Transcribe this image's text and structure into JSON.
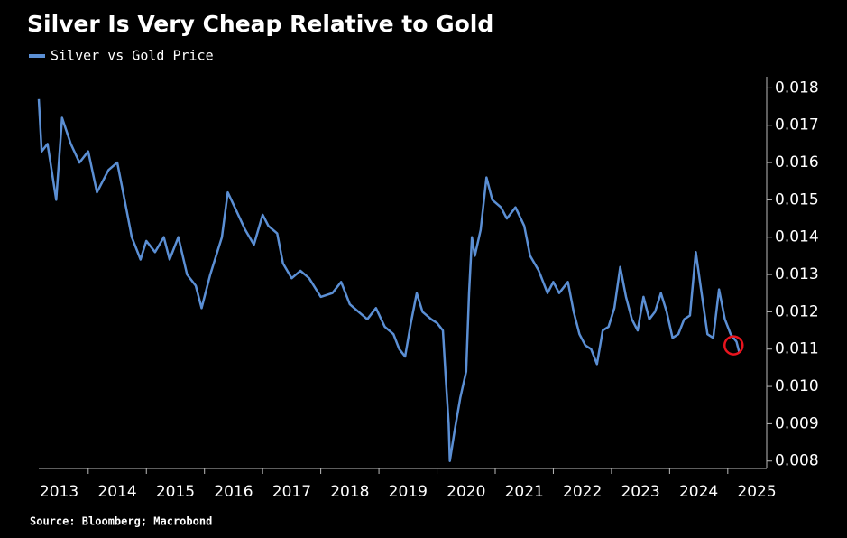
{
  "chart_data": {
    "type": "line",
    "title": "Silver Is Very Cheap Relative to Gold",
    "source": "Source: Bloomberg; Macrobond",
    "x": [
      2013.15,
      2013.2,
      2013.3,
      2013.45,
      2013.55,
      2013.7,
      2013.85,
      2014.0,
      2014.15,
      2014.35,
      2014.5,
      2014.6,
      2014.75,
      2014.9,
      2015.0,
      2015.15,
      2015.3,
      2015.4,
      2015.55,
      2015.7,
      2015.85,
      2015.95,
      2016.1,
      2016.3,
      2016.4,
      2016.55,
      2016.7,
      2016.85,
      2017.0,
      2017.1,
      2017.25,
      2017.35,
      2017.5,
      2017.65,
      2017.8,
      2018.0,
      2018.2,
      2018.35,
      2018.5,
      2018.65,
      2018.8,
      2018.95,
      2019.1,
      2019.25,
      2019.35,
      2019.45,
      2019.55,
      2019.65,
      2019.75,
      2019.9,
      2020.0,
      2020.1,
      2020.15,
      2020.2,
      2020.22,
      2020.3,
      2020.4,
      2020.5,
      2020.55,
      2020.6,
      2020.65,
      2020.75,
      2020.85,
      2020.95,
      2021.1,
      2021.2,
      2021.35,
      2021.5,
      2021.6,
      2021.75,
      2021.9,
      2022.0,
      2022.1,
      2022.25,
      2022.35,
      2022.45,
      2022.55,
      2022.65,
      2022.75,
      2022.85,
      2022.95,
      2023.05,
      2023.15,
      2023.25,
      2023.35,
      2023.45,
      2023.55,
      2023.65,
      2023.75,
      2023.85,
      2023.95,
      2024.05,
      2024.15,
      2024.25,
      2024.35,
      2024.45,
      2024.55,
      2024.65,
      2024.75,
      2024.85,
      2024.95,
      2025.05,
      2025.15,
      2025.2
    ],
    "series": [
      {
        "name": "Silver vs Gold Price",
        "color": "#5b8fd4",
        "values": [
          0.0177,
          0.0163,
          0.0165,
          0.015,
          0.0172,
          0.0165,
          0.016,
          0.0163,
          0.0152,
          0.0158,
          0.016,
          0.0152,
          0.014,
          0.0134,
          0.0139,
          0.0136,
          0.014,
          0.0134,
          0.014,
          0.013,
          0.0127,
          0.0121,
          0.013,
          0.014,
          0.0152,
          0.0147,
          0.0142,
          0.0138,
          0.0146,
          0.0143,
          0.0141,
          0.0133,
          0.0129,
          0.0131,
          0.0129,
          0.0124,
          0.0125,
          0.0128,
          0.0122,
          0.012,
          0.0118,
          0.0121,
          0.0116,
          0.0114,
          0.011,
          0.0108,
          0.0117,
          0.0125,
          0.012,
          0.0118,
          0.0117,
          0.0115,
          0.0102,
          0.009,
          0.008,
          0.0088,
          0.0097,
          0.0104,
          0.0125,
          0.014,
          0.0135,
          0.0142,
          0.0156,
          0.015,
          0.0148,
          0.0145,
          0.0148,
          0.0143,
          0.0135,
          0.0131,
          0.0125,
          0.0128,
          0.0125,
          0.0128,
          0.012,
          0.0114,
          0.0111,
          0.011,
          0.0106,
          0.0115,
          0.0116,
          0.0121,
          0.0132,
          0.0124,
          0.0118,
          0.0115,
          0.0124,
          0.0118,
          0.012,
          0.0125,
          0.012,
          0.0113,
          0.0114,
          0.0118,
          0.0119,
          0.0136,
          0.0125,
          0.0114,
          0.0113,
          0.0126,
          0.0118,
          0.0114,
          0.0112,
          0.0109
        ]
      }
    ],
    "highlight": {
      "x": 2025.1,
      "y": 0.0111,
      "color": "#e8141e"
    },
    "xlim": [
      2013.15,
      2025.67
    ],
    "xticks": [
      2013,
      2014,
      2015,
      2016,
      2017,
      2018,
      2019,
      2020,
      2021,
      2022,
      2023,
      2024,
      2025
    ],
    "ylim": [
      0.0078,
      0.0183
    ],
    "yticks": [
      0.008,
      0.009,
      {
        "value": 0.01,
        "label": "0.010"
      },
      0.011,
      0.012,
      0.013,
      0.014,
      0.015,
      0.016,
      0.017,
      0.018
    ]
  }
}
